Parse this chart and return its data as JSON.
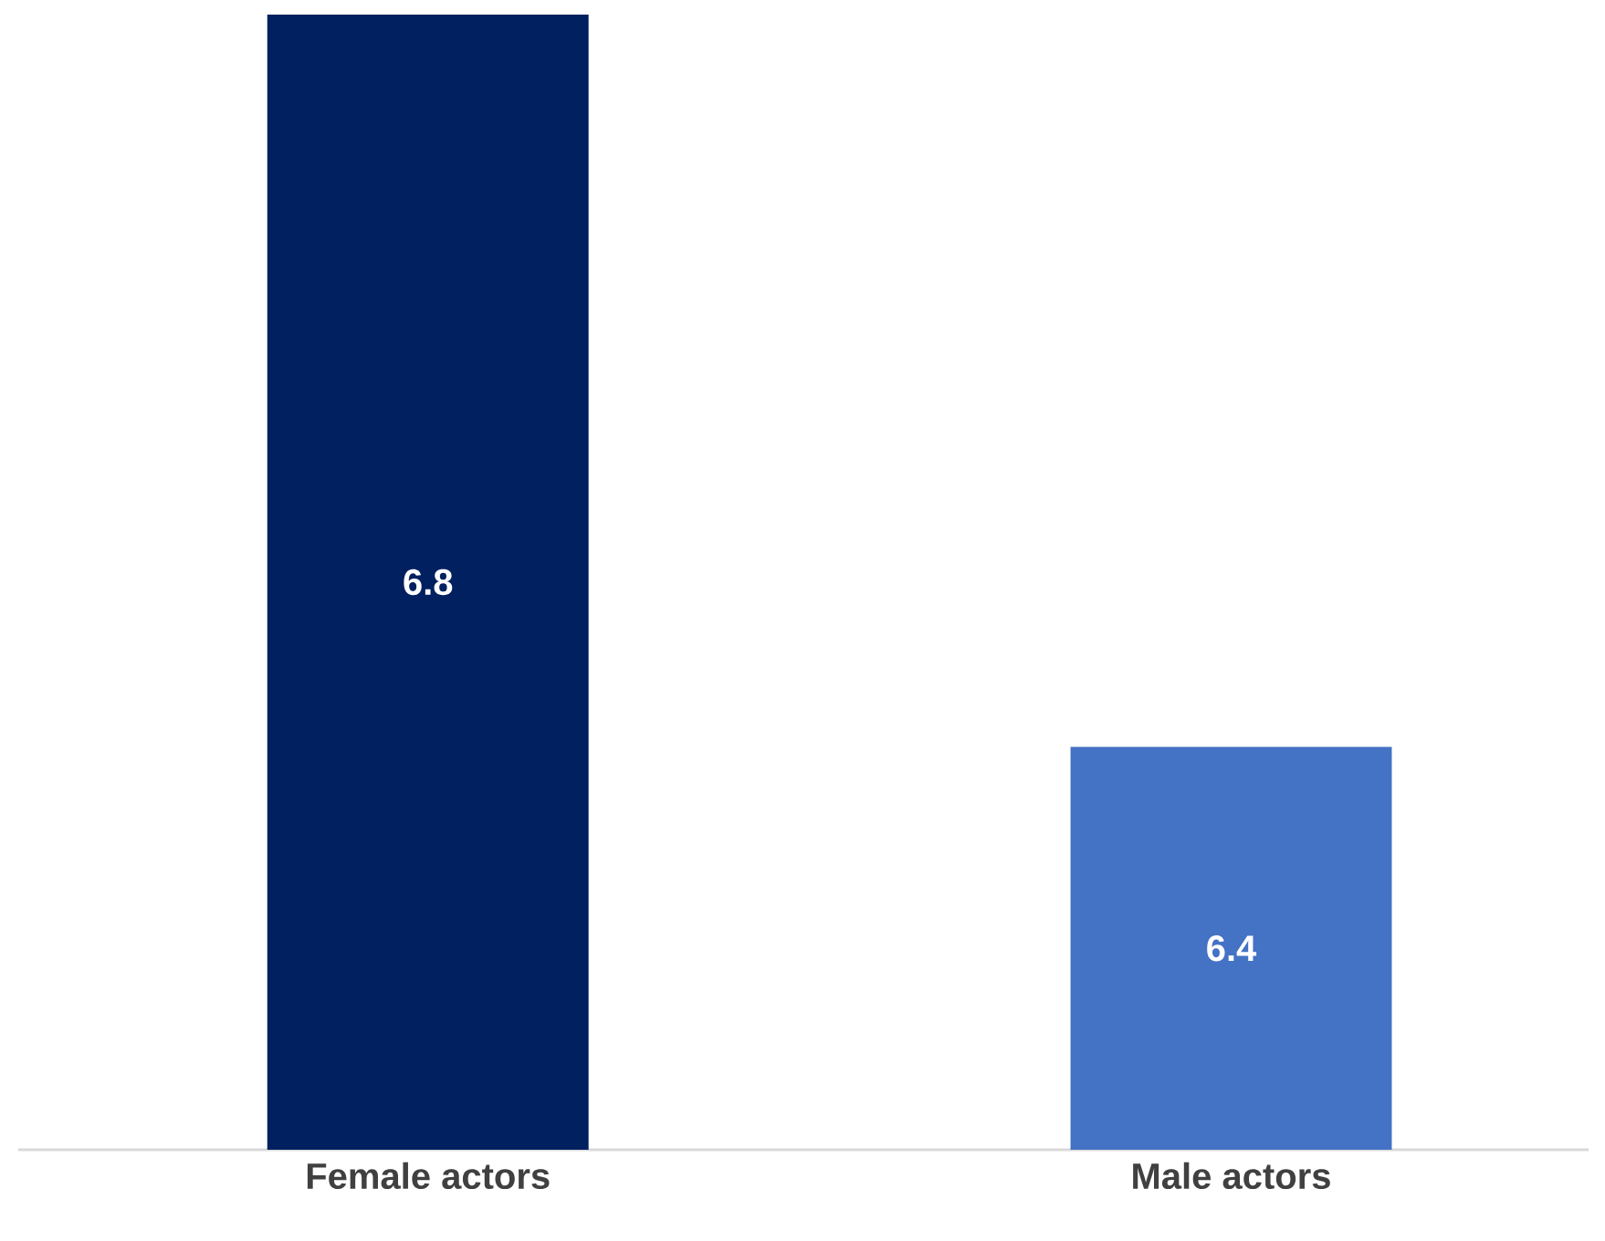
{
  "chart_data": {
    "type": "bar",
    "categories": [
      "Female actors",
      "Male actors"
    ],
    "values": [
      6.8,
      6.4
    ],
    "colors": [
      "#002060",
      "#4472c4"
    ],
    "ylim": [
      6.18,
      6.8
    ],
    "tick_labels": "x",
    "data_labels": true
  }
}
